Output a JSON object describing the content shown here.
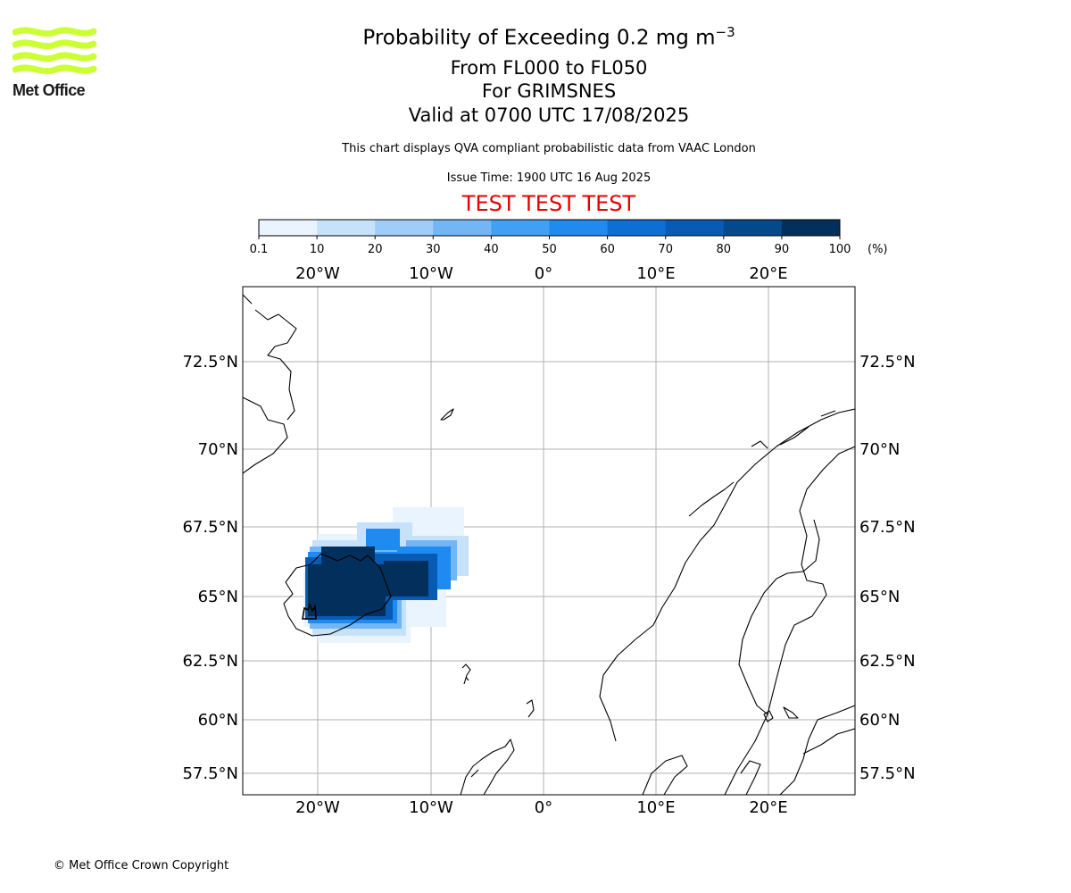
{
  "header": {
    "title_main": "Probability of Exceeding 0.2 mg m",
    "title_exponent": "−3",
    "line2": "From FL000 to FL050",
    "line3": "For GRIMSNES",
    "line4": "Valid at 0700 UTC 17/08/2025",
    "note": "This chart displays QVA compliant probabilistic data from VAAC London",
    "issue_time": "Issue Time: 1900 UTC 16 Aug 2025",
    "test_banner": "TEST TEST TEST"
  },
  "logo": {
    "text": "Met Office",
    "color": "#ccff33"
  },
  "footer": {
    "copyright": "© Met Office Crown Copyright"
  },
  "colors": {
    "test_banner": "#e60000",
    "gridlines": "#b0b0b0",
    "coastline": "#000000",
    "scale": [
      "#eaf4fe",
      "#c6e2fb",
      "#9fcdf8",
      "#72b6f6",
      "#42a0f4",
      "#1f8af0",
      "#0c6fd6",
      "#075bb4",
      "#05498d",
      "#032f5c"
    ]
  },
  "colorbar": {
    "ticks": [
      "0.1",
      "10",
      "20",
      "30",
      "40",
      "50",
      "60",
      "70",
      "80",
      "90",
      "100"
    ],
    "unit": "(%)"
  },
  "map": {
    "lon_labels": [
      "20°W",
      "10°W",
      "0°",
      "10°E",
      "20°E"
    ],
    "lat_labels": [
      "72.5°N",
      "70°N",
      "67.5°N",
      "65°N",
      "62.5°N",
      "60°N",
      "57.5°N"
    ],
    "grid": true
  }
}
